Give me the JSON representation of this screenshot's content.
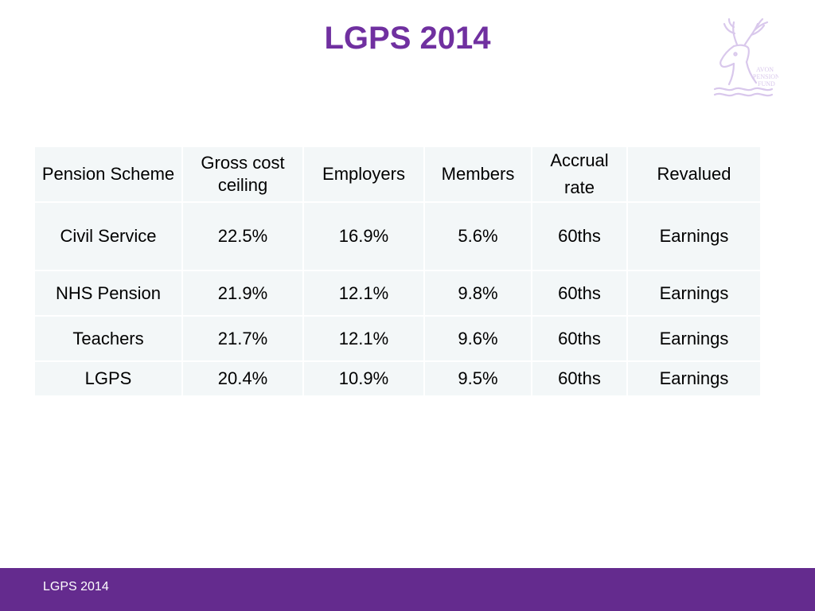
{
  "slide": {
    "title": "LGPS 2014",
    "footer": "LGPS 2014"
  },
  "logo": {
    "text_line1": "AVON",
    "text_line2": "PENSION",
    "text_line3": "FUND"
  },
  "table": {
    "headers": [
      "Pension Scheme",
      "Gross cost ceiling",
      "Employers",
      "Members",
      "Accrual rate",
      "Revalued"
    ],
    "rows": [
      [
        "Civil Service",
        "22.5%",
        "16.9%",
        "5.6%",
        "60ths",
        "Earnings"
      ],
      [
        "NHS Pension",
        "21.9%",
        "12.1%",
        "9.8%",
        "60ths",
        "Earnings"
      ],
      [
        "Teachers",
        "21.7%",
        "12.1%",
        "9.6%",
        "60ths",
        "Earnings"
      ],
      [
        "LGPS",
        "20.4%",
        "10.9%",
        "9.5%",
        "60ths",
        "Earnings"
      ]
    ]
  },
  "colors": {
    "title": "#7030a0",
    "footer_bar": "#642b8e",
    "footer_text": "#ffffff",
    "table_cell": "#f3f7f8",
    "logo": "#d9c8ec"
  }
}
